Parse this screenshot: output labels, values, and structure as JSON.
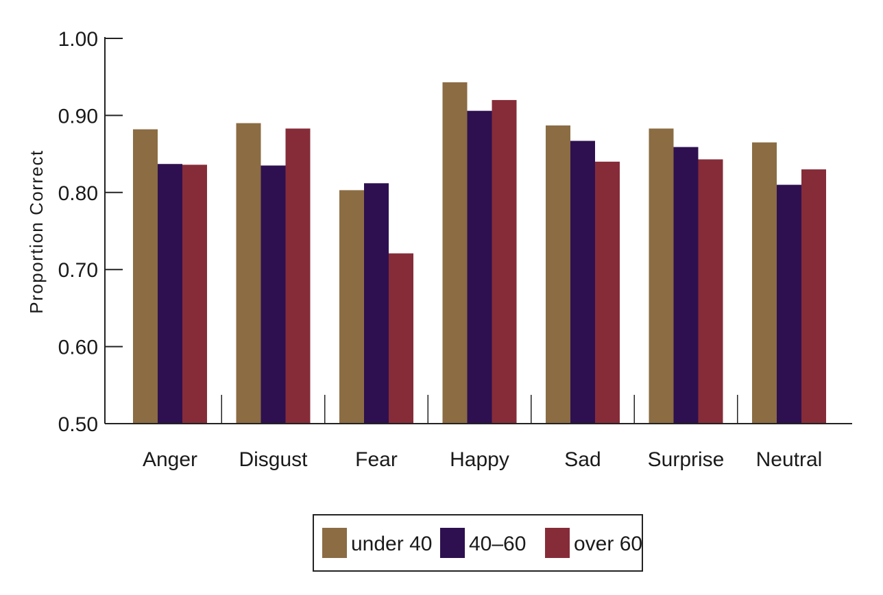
{
  "chart_data": {
    "type": "bar",
    "categories": [
      "Anger",
      "Disgust",
      "Fear",
      "Happy",
      "Sad",
      "Surprise",
      "Neutral"
    ],
    "series": [
      {
        "name": "under 40",
        "color": "#8b6c43",
        "values": [
          0.882,
          0.89,
          0.803,
          0.943,
          0.887,
          0.883,
          0.865
        ]
      },
      {
        "name": "40–60",
        "color": "#2e1050",
        "values": [
          0.837,
          0.835,
          0.812,
          0.906,
          0.867,
          0.859,
          0.81
        ]
      },
      {
        "name": "over 60",
        "color": "#862c38",
        "values": [
          0.836,
          0.883,
          0.721,
          0.92,
          0.84,
          0.843,
          0.83
        ]
      }
    ],
    "title": "",
    "xlabel": "",
    "ylabel": "Proportion Correct",
    "ylim": [
      0.5,
      1.0
    ],
    "yticks": [
      "0.50",
      "0.60",
      "0.70",
      "0.80",
      "0.90",
      "1.00"
    ],
    "grid": false,
    "legend_position": "bottom-center"
  }
}
